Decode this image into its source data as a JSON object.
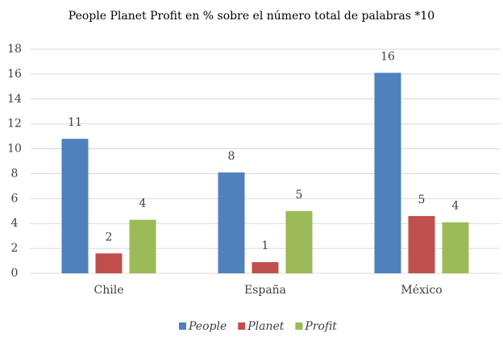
{
  "chart_data": {
    "type": "bar",
    "title": "People Planet Profit en % sobre el número total de palabras *10",
    "categories": [
      "Chile",
      "España",
      "México"
    ],
    "series": [
      {
        "name": "People",
        "color": "#4f81bd",
        "values": [
          10.8,
          8.1,
          16.1
        ],
        "value_labels": [
          "11",
          "8",
          "16"
        ]
      },
      {
        "name": "Planet",
        "color": "#c0504d",
        "values": [
          1.6,
          0.9,
          4.6
        ],
        "value_labels": [
          "2",
          "1",
          "5"
        ]
      },
      {
        "name": "Profit",
        "color": "#9bbb59",
        "values": [
          4.3,
          5.0,
          4.1
        ],
        "value_labels": [
          "4",
          "5",
          "4"
        ]
      }
    ],
    "ylim": [
      0,
      18
    ],
    "yticks": [
      0,
      2,
      4,
      6,
      8,
      10,
      12,
      14,
      16,
      18
    ],
    "grid": true,
    "legend": "bottom"
  }
}
